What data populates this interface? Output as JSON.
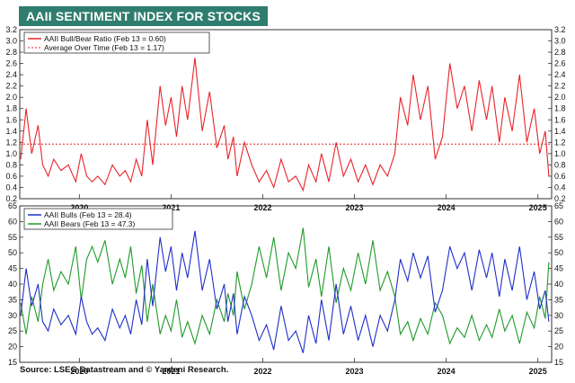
{
  "title": "AAII SENTIMENT INDEX FOR STOCKS",
  "source": "Source: LSEG Datastream and © Yardeni Research.",
  "colors": {
    "header_bg": "#2f7d6e",
    "ratio": "#e8242a",
    "bulls": "#1f2fc8",
    "bears": "#1f9a2a",
    "average": "#e8242a"
  },
  "chart_data": [
    {
      "type": "line",
      "title": "AAII Bull/Bear Ratio",
      "x_ticks": [
        "2020",
        "2021",
        "2022",
        "2023",
        "2024",
        "2025"
      ],
      "x_range": [
        2019.35,
        2025.15
      ],
      "ylim": [
        0.2,
        3.2
      ],
      "y_ticks": [
        "0.2",
        "0.4",
        "0.6",
        "0.8",
        "1.0",
        "1.2",
        "1.4",
        "1.6",
        "1.8",
        "2.0",
        "2.2",
        "2.4",
        "2.6",
        "2.8",
        "3.0",
        "3.2"
      ],
      "legend": [
        "AAII Bull/Bear Ratio (Feb 13 = 0.60)",
        "Average Over Time (Feb 13 = 1.17)"
      ],
      "average": 1.17,
      "series": [
        {
          "name": "AAII Bull/Bear Ratio",
          "x": [
            2019.36,
            2019.42,
            2019.48,
            2019.55,
            2019.6,
            2019.66,
            2019.72,
            2019.8,
            2019.88,
            2019.96,
            2020.02,
            2020.08,
            2020.14,
            2020.2,
            2020.28,
            2020.36,
            2020.44,
            2020.5,
            2020.56,
            2020.62,
            2020.68,
            2020.74,
            2020.8,
            2020.88,
            2020.94,
            2021.0,
            2021.06,
            2021.12,
            2021.18,
            2021.26,
            2021.34,
            2021.42,
            2021.5,
            2021.58,
            2021.62,
            2021.68,
            2021.72,
            2021.8,
            2021.88,
            2021.96,
            2022.04,
            2022.12,
            2022.2,
            2022.28,
            2022.36,
            2022.44,
            2022.5,
            2022.58,
            2022.64,
            2022.72,
            2022.8,
            2022.88,
            2022.96,
            2023.04,
            2023.12,
            2023.2,
            2023.28,
            2023.36,
            2023.44,
            2023.5,
            2023.58,
            2023.64,
            2023.72,
            2023.8,
            2023.88,
            2023.96,
            2024.04,
            2024.12,
            2024.2,
            2024.28,
            2024.36,
            2024.44,
            2024.5,
            2024.58,
            2024.64,
            2024.72,
            2024.8,
            2024.88,
            2024.96,
            2025.02,
            2025.08,
            2025.12
          ],
          "values": [
            0.9,
            1.8,
            1.0,
            1.5,
            0.8,
            0.6,
            0.9,
            0.7,
            0.8,
            0.5,
            1.0,
            0.6,
            0.5,
            0.6,
            0.45,
            0.8,
            0.6,
            0.7,
            0.5,
            0.9,
            0.6,
            1.6,
            0.8,
            2.2,
            1.5,
            2.0,
            1.3,
            2.2,
            1.6,
            2.7,
            1.4,
            2.1,
            1.1,
            1.5,
            0.9,
            1.3,
            0.6,
            1.2,
            0.8,
            0.5,
            0.7,
            0.4,
            0.9,
            0.5,
            0.6,
            0.35,
            0.8,
            0.5,
            1.0,
            0.5,
            1.2,
            0.6,
            0.9,
            0.5,
            0.8,
            0.45,
            0.8,
            0.6,
            1.0,
            2.0,
            1.5,
            2.4,
            1.6,
            2.2,
            0.9,
            1.3,
            2.6,
            1.8,
            2.2,
            1.4,
            2.3,
            1.6,
            2.2,
            1.2,
            2.0,
            1.4,
            2.4,
            1.2,
            1.8,
            1.0,
            1.4,
            0.6
          ]
        }
      ]
    },
    {
      "type": "line",
      "title": "AAII Bulls and Bears",
      "x_ticks": [
        "2020",
        "2021",
        "2022",
        "2023",
        "2024",
        "2025"
      ],
      "x_range": [
        2019.35,
        2025.15
      ],
      "ylim": [
        15,
        65
      ],
      "y_ticks": [
        "15",
        "20",
        "25",
        "30",
        "35",
        "40",
        "45",
        "50",
        "55",
        "60",
        "65"
      ],
      "legend": [
        "AAII Bulls  (Feb 13 = 28.4)",
        "AAII Bears (Feb 13 = 47.3)"
      ],
      "series": [
        {
          "name": "AAII Bulls",
          "x": [
            2019.36,
            2019.42,
            2019.48,
            2019.55,
            2019.6,
            2019.66,
            2019.72,
            2019.8,
            2019.88,
            2019.96,
            2020.02,
            2020.08,
            2020.14,
            2020.2,
            2020.28,
            2020.36,
            2020.44,
            2020.5,
            2020.56,
            2020.62,
            2020.68,
            2020.74,
            2020.8,
            2020.88,
            2020.94,
            2021.0,
            2021.06,
            2021.12,
            2021.18,
            2021.26,
            2021.34,
            2021.42,
            2021.5,
            2021.58,
            2021.62,
            2021.68,
            2021.72,
            2021.8,
            2021.88,
            2021.96,
            2022.04,
            2022.12,
            2022.2,
            2022.28,
            2022.36,
            2022.44,
            2022.5,
            2022.58,
            2022.64,
            2022.72,
            2022.8,
            2022.88,
            2022.96,
            2023.04,
            2023.12,
            2023.2,
            2023.28,
            2023.36,
            2023.44,
            2023.5,
            2023.58,
            2023.64,
            2023.72,
            2023.8,
            2023.88,
            2023.96,
            2024.04,
            2024.12,
            2024.2,
            2024.28,
            2024.36,
            2024.44,
            2024.5,
            2024.58,
            2024.64,
            2024.72,
            2024.8,
            2024.88,
            2024.96,
            2025.02,
            2025.08,
            2025.12
          ],
          "values": [
            30,
            45,
            33,
            40,
            28,
            25,
            32,
            27,
            30,
            24,
            36,
            28,
            24,
            26,
            22,
            32,
            26,
            30,
            24,
            35,
            27,
            48,
            33,
            55,
            44,
            52,
            38,
            50,
            42,
            57,
            38,
            48,
            32,
            40,
            28,
            37,
            24,
            36,
            30,
            22,
            27,
            19,
            33,
            22,
            25,
            18,
            30,
            21,
            35,
            22,
            40,
            24,
            33,
            22,
            30,
            20,
            30,
            25,
            35,
            48,
            41,
            50,
            42,
            49,
            31,
            38,
            52,
            45,
            50,
            38,
            51,
            42,
            50,
            36,
            48,
            38,
            52,
            35,
            44,
            32,
            38,
            28
          ]
        },
        {
          "name": "AAII Bears",
          "x": [
            2019.36,
            2019.42,
            2019.48,
            2019.55,
            2019.6,
            2019.66,
            2019.72,
            2019.8,
            2019.88,
            2019.96,
            2020.02,
            2020.08,
            2020.14,
            2020.2,
            2020.28,
            2020.36,
            2020.44,
            2020.5,
            2020.56,
            2020.62,
            2020.68,
            2020.74,
            2020.8,
            2020.88,
            2020.94,
            2021.0,
            2021.06,
            2021.12,
            2021.18,
            2021.26,
            2021.34,
            2021.42,
            2021.5,
            2021.58,
            2021.62,
            2021.68,
            2021.72,
            2021.8,
            2021.88,
            2021.96,
            2022.04,
            2022.12,
            2022.2,
            2022.28,
            2022.36,
            2022.44,
            2022.5,
            2022.58,
            2022.64,
            2022.72,
            2022.8,
            2022.88,
            2022.96,
            2023.04,
            2023.12,
            2023.2,
            2023.28,
            2023.36,
            2023.44,
            2023.5,
            2023.58,
            2023.64,
            2023.72,
            2023.8,
            2023.88,
            2023.96,
            2024.04,
            2024.12,
            2024.2,
            2024.28,
            2024.36,
            2024.44,
            2024.5,
            2024.58,
            2024.64,
            2024.72,
            2024.8,
            2024.88,
            2024.96,
            2025.02,
            2025.08,
            2025.12
          ],
          "values": [
            34,
            24,
            36,
            28,
            40,
            48,
            38,
            44,
            40,
            52,
            35,
            48,
            52,
            47,
            54,
            40,
            48,
            42,
            52,
            37,
            46,
            28,
            40,
            24,
            30,
            25,
            35,
            23,
            28,
            21,
            30,
            24,
            35,
            28,
            37,
            30,
            44,
            32,
            40,
            52,
            42,
            55,
            38,
            50,
            45,
            58,
            39,
            48,
            36,
            52,
            34,
            45,
            38,
            50,
            40,
            54,
            38,
            44,
            36,
            24,
            28,
            22,
            29,
            24,
            34,
            30,
            21,
            26,
            23,
            30,
            22,
            27,
            23,
            32,
            25,
            30,
            21,
            31,
            26,
            36,
            29,
            47
          ]
        }
      ]
    }
  ]
}
